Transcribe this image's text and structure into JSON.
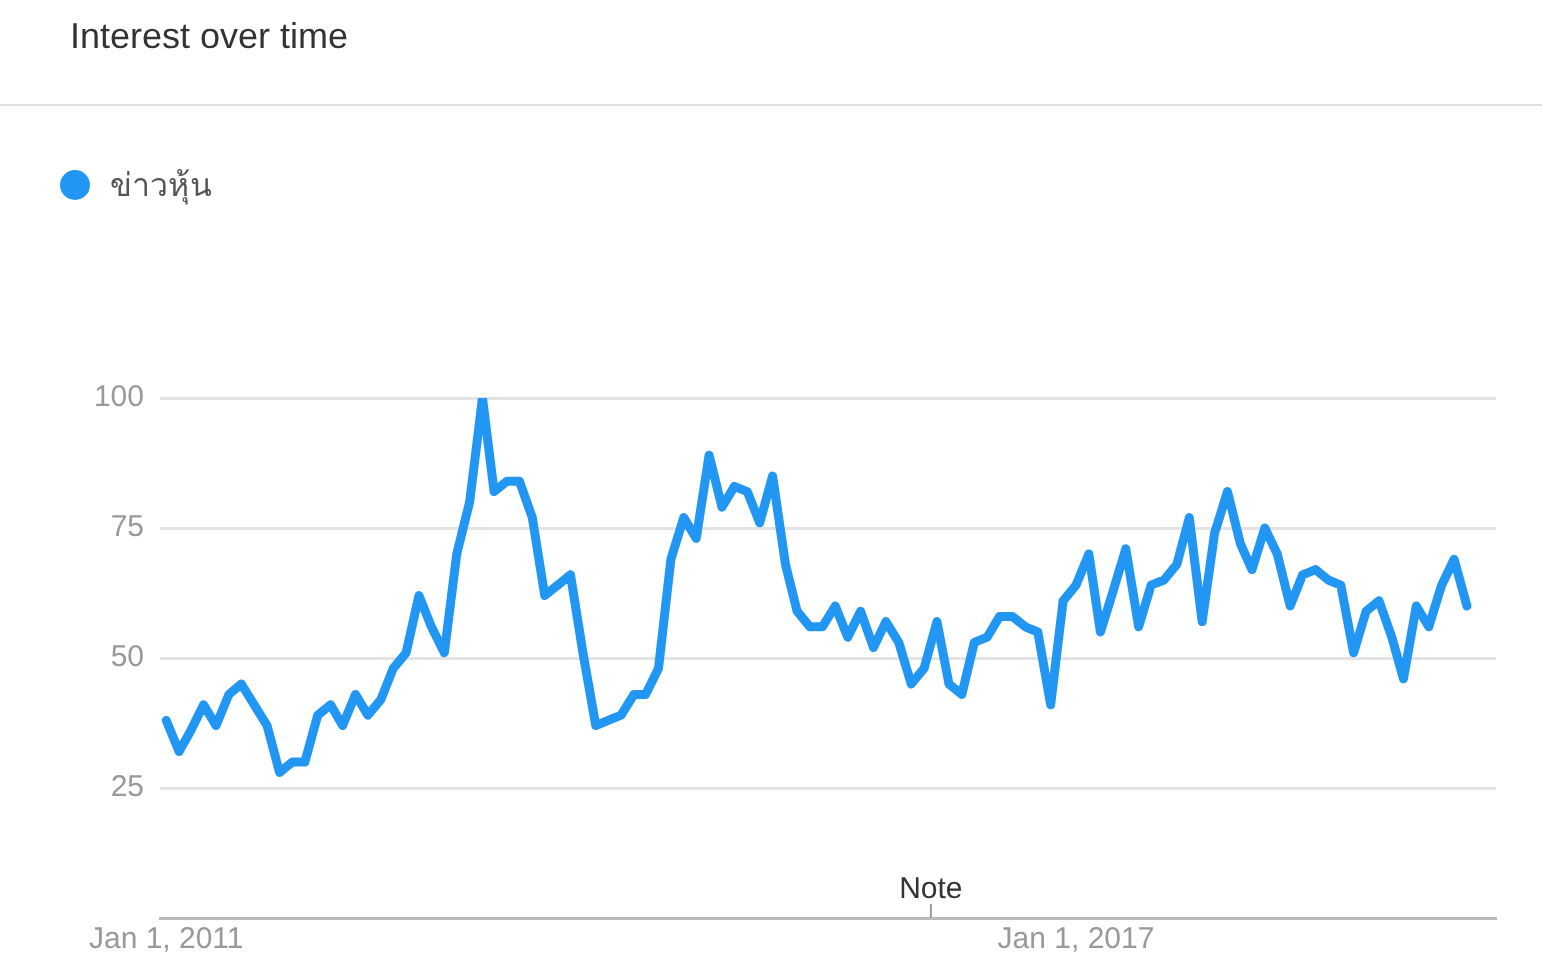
{
  "chart_data": {
    "type": "line",
    "title": "Interest over time",
    "x": [
      "2011-01",
      "2011-02",
      "2011-03",
      "2011-04",
      "2011-05",
      "2011-06",
      "2011-07",
      "2011-08",
      "2011-09",
      "2011-10",
      "2011-11",
      "2011-12",
      "2012-01",
      "2012-02",
      "2012-03",
      "2012-04",
      "2012-05",
      "2012-06",
      "2012-07",
      "2012-08",
      "2012-09",
      "2012-10",
      "2012-11",
      "2012-12",
      "2013-01",
      "2013-02",
      "2013-03",
      "2013-04",
      "2013-05",
      "2013-06",
      "2013-07",
      "2013-08",
      "2013-09",
      "2013-10",
      "2013-11",
      "2013-12",
      "2014-01",
      "2014-02",
      "2014-03",
      "2014-04",
      "2014-05",
      "2014-06",
      "2014-07",
      "2014-08",
      "2014-09",
      "2014-10",
      "2014-11",
      "2014-12",
      "2015-01",
      "2015-02",
      "2015-03",
      "2015-04",
      "2015-05",
      "2015-06",
      "2015-07",
      "2015-08",
      "2015-09",
      "2015-10",
      "2015-11",
      "2015-12",
      "2016-01",
      "2016-02",
      "2016-03",
      "2016-04",
      "2016-05",
      "2016-06",
      "2016-07",
      "2016-08",
      "2016-09",
      "2016-10",
      "2016-11",
      "2016-12",
      "2017-01",
      "2017-02",
      "2017-03",
      "2017-04",
      "2017-05",
      "2017-06",
      "2017-07",
      "2017-08",
      "2017-09",
      "2017-10",
      "2017-11",
      "2017-12",
      "2018-01",
      "2018-02",
      "2018-03",
      "2018-04",
      "2018-05",
      "2018-06",
      "2018-07",
      "2018-08",
      "2018-09",
      "2018-10",
      "2018-11",
      "2018-12",
      "2019-01",
      "2019-02",
      "2019-03",
      "2019-04",
      "2019-05",
      "2019-06",
      "2019-07",
      "2019-08"
    ],
    "series": [
      {
        "name": "ข่าวหุ้น",
        "color": "#2196f3",
        "values": [
          38,
          32,
          36,
          41,
          37,
          43,
          45,
          41,
          37,
          28,
          30,
          30,
          39,
          41,
          37,
          43,
          39,
          42,
          48,
          51,
          62,
          56,
          51,
          70,
          80,
          100,
          82,
          84,
          84,
          77,
          62,
          64,
          66,
          51,
          37,
          38,
          39,
          43,
          43,
          48,
          69,
          77,
          73,
          89,
          79,
          83,
          82,
          76,
          85,
          68,
          59,
          56,
          56,
          60,
          54,
          59,
          52,
          57,
          53,
          45,
          48,
          57,
          45,
          43,
          53,
          54,
          58,
          58,
          56,
          55,
          41,
          61,
          64,
          70,
          55,
          63,
          71,
          56,
          64,
          65,
          68,
          77,
          57,
          74,
          82,
          72,
          67,
          75,
          70,
          60,
          66,
          67,
          65,
          64,
          51,
          59,
          61,
          54,
          46,
          60,
          56,
          64,
          69,
          60
        ]
      }
    ],
    "xlim": [
      "2010-12-17",
      "2019-10-10"
    ],
    "xticks": [
      {
        "value": "2011-01-01",
        "label": "Jan 1, 2011"
      },
      {
        "value": "2017-01-01",
        "label": "Jan 1, 2017"
      }
    ],
    "ylim": [
      0,
      100
    ],
    "yticks": [
      25,
      50,
      75,
      100
    ],
    "grid": "y",
    "legend": "top left",
    "marker": "none",
    "line_style": "solid",
    "annotations": [
      "Note"
    ]
  }
}
